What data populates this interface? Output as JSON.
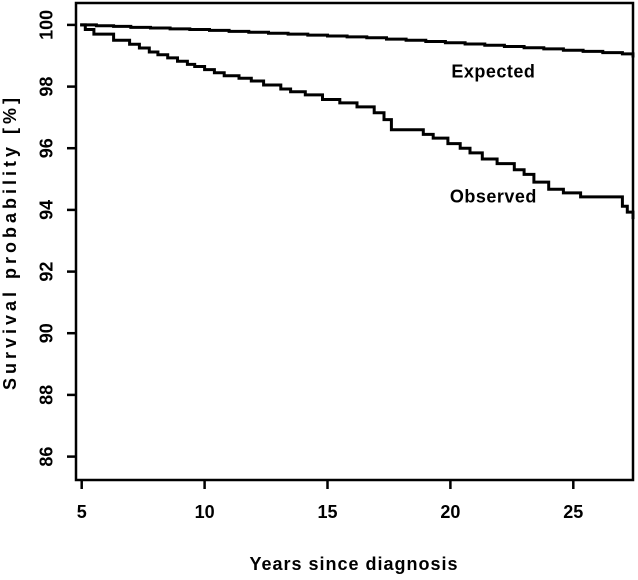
{
  "chart_data": {
    "type": "line",
    "title": "",
    "xlabel": "Years since diagnosis",
    "ylabel": "Survival probability [%]",
    "xlim": [
      4.77,
      27.43
    ],
    "ylim": [
      85.24,
      100.71
    ],
    "x_ticks": [
      5,
      10,
      15,
      20,
      25
    ],
    "y_ticks": [
      100,
      98,
      96,
      94,
      92,
      90,
      88,
      86
    ],
    "grid": false,
    "legend_position": "inline-annotations",
    "interpolation": "step-after",
    "line_color": "#000000",
    "background_color": "#ffffff",
    "series": [
      {
        "name": "Expected",
        "label": [
          21.75,
          98.5
        ],
        "points": [
          [
            5.0,
            100.0
          ],
          [
            5.6,
            99.97
          ],
          [
            6.3,
            99.95
          ],
          [
            7.0,
            99.92
          ],
          [
            7.8,
            99.9
          ],
          [
            8.6,
            99.87
          ],
          [
            9.4,
            99.85
          ],
          [
            10.2,
            99.82
          ],
          [
            11.0,
            99.79
          ],
          [
            11.8,
            99.76
          ],
          [
            12.6,
            99.73
          ],
          [
            13.4,
            99.7
          ],
          [
            14.2,
            99.67
          ],
          [
            15.0,
            99.64
          ],
          [
            15.8,
            99.61
          ],
          [
            16.6,
            99.58
          ],
          [
            17.4,
            99.54
          ],
          [
            18.2,
            99.5
          ],
          [
            19.0,
            99.46
          ],
          [
            19.8,
            99.42
          ],
          [
            20.6,
            99.38
          ],
          [
            21.4,
            99.34
          ],
          [
            22.2,
            99.3
          ],
          [
            23.0,
            99.26
          ],
          [
            23.8,
            99.22
          ],
          [
            24.6,
            99.18
          ],
          [
            25.4,
            99.14
          ],
          [
            26.2,
            99.1
          ],
          [
            27.0,
            99.06
          ],
          [
            27.43,
            98.99
          ]
        ]
      },
      {
        "name": "Observed",
        "label": [
          21.75,
          94.45
        ],
        "points": [
          [
            5.0,
            100.0
          ],
          [
            5.15,
            99.85
          ],
          [
            5.5,
            99.7
          ],
          [
            6.3,
            99.5
          ],
          [
            6.95,
            99.37
          ],
          [
            7.35,
            99.25
          ],
          [
            7.75,
            99.12
          ],
          [
            8.1,
            99.03
          ],
          [
            8.5,
            98.93
          ],
          [
            8.9,
            98.82
          ],
          [
            9.3,
            98.72
          ],
          [
            9.6,
            98.65
          ],
          [
            10.0,
            98.55
          ],
          [
            10.4,
            98.45
          ],
          [
            10.8,
            98.35
          ],
          [
            11.4,
            98.27
          ],
          [
            11.9,
            98.18
          ],
          [
            12.4,
            98.05
          ],
          [
            13.1,
            97.92
          ],
          [
            13.5,
            97.83
          ],
          [
            14.1,
            97.73
          ],
          [
            14.8,
            97.58
          ],
          [
            15.5,
            97.47
          ],
          [
            16.2,
            97.34
          ],
          [
            16.9,
            97.15
          ],
          [
            17.3,
            96.93
          ],
          [
            17.6,
            96.6
          ],
          [
            18.9,
            96.45
          ],
          [
            19.3,
            96.33
          ],
          [
            19.9,
            96.15
          ],
          [
            20.4,
            96.0
          ],
          [
            20.8,
            95.85
          ],
          [
            21.3,
            95.65
          ],
          [
            21.9,
            95.5
          ],
          [
            22.6,
            95.3
          ],
          [
            23.0,
            95.15
          ],
          [
            23.4,
            94.9
          ],
          [
            24.0,
            94.67
          ],
          [
            24.6,
            94.55
          ],
          [
            25.3,
            94.42
          ],
          [
            27.0,
            94.12
          ],
          [
            27.2,
            93.93
          ],
          [
            27.43,
            93.75
          ]
        ]
      }
    ]
  }
}
